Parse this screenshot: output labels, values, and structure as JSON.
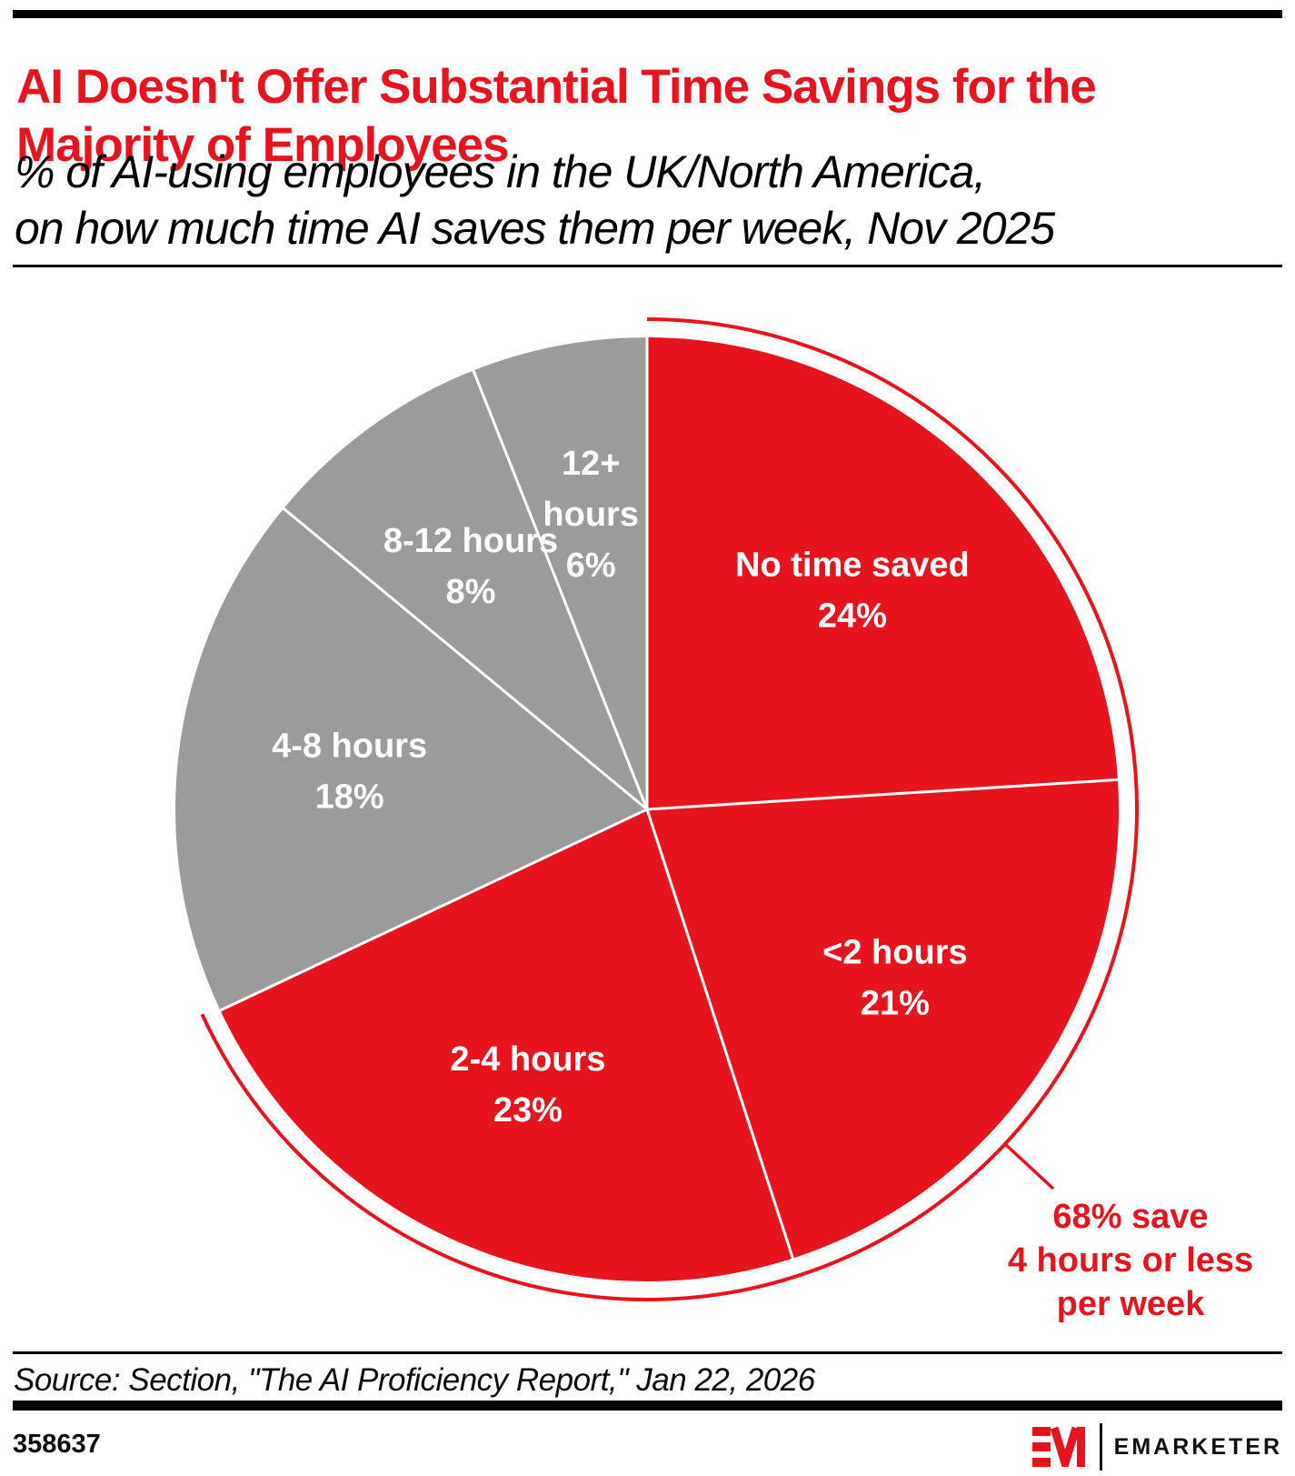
{
  "header": {
    "title_line1": "AI Doesn't Offer Substantial Time Savings for the",
    "title_line2": "Majority of Employees",
    "subtitle_line1": "% of AI-using employees in the UK/North America,",
    "subtitle_line2": "on how much time AI saves them per week, Nov 2025"
  },
  "chart_data": {
    "type": "pie",
    "title": "AI Doesn't Offer Substantial Time Savings for the Majority of Employees",
    "subtitle": "% of AI-using employees in the UK/North America, on how much time AI saves them per week, Nov 2025",
    "unit": "%",
    "start_angle_deg": 0,
    "direction": "clockwise",
    "slices": [
      {
        "label_lines": [
          "No time saved"
        ],
        "value": 24,
        "color": "#E7141E"
      },
      {
        "label_lines": [
          "<2 hours"
        ],
        "value": 21,
        "color": "#E7141E"
      },
      {
        "label_lines": [
          "2-4 hours"
        ],
        "value": 23,
        "color": "#E7141E"
      },
      {
        "label_lines": [
          "4-8 hours"
        ],
        "value": 18,
        "color": "#9B9B9B"
      },
      {
        "label_lines": [
          "8-12 hours"
        ],
        "value": 8,
        "color": "#9B9B9B"
      },
      {
        "label_lines": [
          "12+",
          "hours"
        ],
        "value": 6,
        "color": "#9B9B9B"
      }
    ],
    "highlight_arc": {
      "covers_slices": [
        0,
        1,
        2
      ],
      "total_percent": 68,
      "color": "#E7141E"
    },
    "annotation_lines": [
      "68% save",
      "4 hours or less",
      "per week"
    ],
    "legend": "none",
    "grid": false
  },
  "footer": {
    "source": "Source: Section, \"The AI Proficiency Report,\" Jan 22, 2026",
    "chart_id": "358637",
    "brand_name": "EMARKETER"
  },
  "colors": {
    "red": "#E7141E",
    "gray": "#9B9B9B",
    "slice_label": "#FFFFFF",
    "text": "#000000"
  }
}
